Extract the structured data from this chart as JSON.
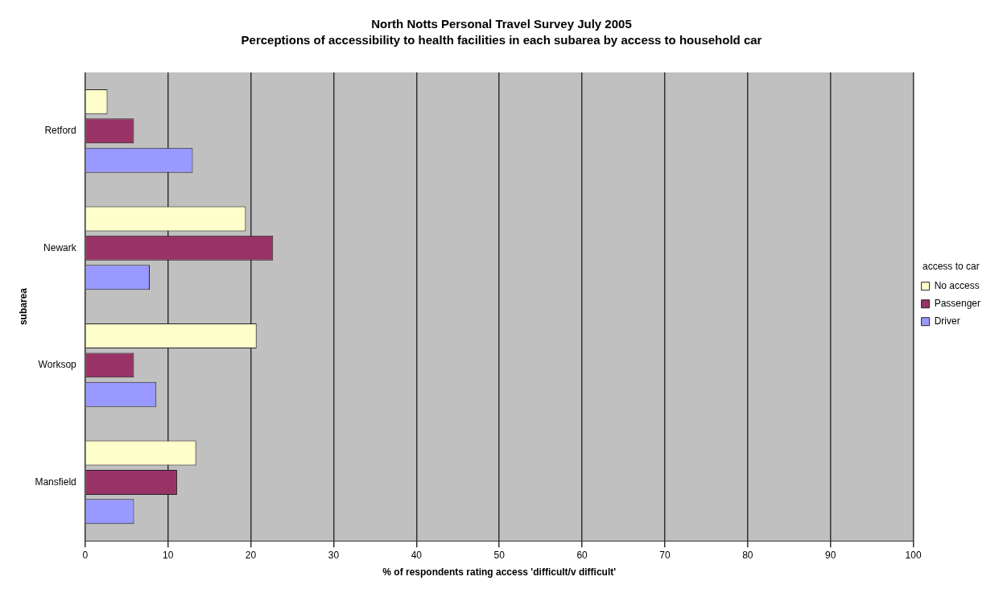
{
  "chart_data": {
    "type": "bar",
    "orientation": "horizontal",
    "title": "North Notts Personal Travel Survey July 2005",
    "subtitle": "Perceptions of accessibility to health facilities in each subarea by access to household car",
    "xlabel": "% of respondents rating access 'difficult/v difficult'",
    "ylabel": "subarea",
    "legend_title": "access to car",
    "legend": "right",
    "grid": "x",
    "categories": [
      "Retford",
      "Newark",
      "Worksop",
      "Mansfield"
    ],
    "xlim": [
      0,
      100
    ],
    "xticks": [
      0,
      10,
      20,
      30,
      40,
      50,
      60,
      70,
      80,
      90,
      100
    ],
    "series": [
      {
        "name": "No access",
        "color": "#ffffcc",
        "values": [
          2.7,
          19.4,
          20.7,
          13.4
        ]
      },
      {
        "name": "Passenger",
        "color": "#993366",
        "values": [
          5.9,
          22.7,
          5.9,
          11.1
        ]
      },
      {
        "name": "Driver",
        "color": "#9999ff",
        "values": [
          13.0,
          7.8,
          8.6,
          5.9
        ]
      }
    ]
  }
}
